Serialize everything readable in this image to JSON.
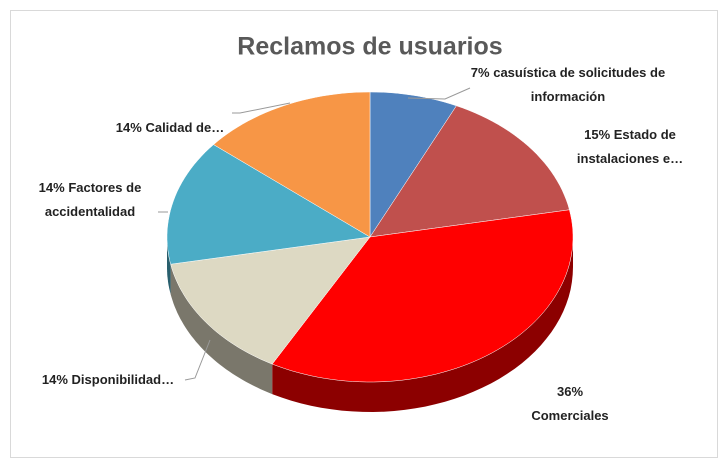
{
  "chart_data": {
    "type": "pie",
    "title": "Reclamos de usuarios",
    "categories": [
      "casuística de solicitudes de información",
      "Estado de instalaciones e…",
      "Comerciales",
      "Disponibilidad…",
      "Factores de accidentalidad",
      "Calidad de…"
    ],
    "values": [
      7,
      15,
      36,
      14,
      14,
      14
    ],
    "value_labels": [
      "7%",
      "15%",
      "36%",
      "14%",
      "14%",
      "14%"
    ],
    "colors": [
      "#4f81bd",
      "#c0504d",
      "#ff0000",
      "#ddd9c3",
      "#4bacc6",
      "#f79646"
    ]
  }
}
